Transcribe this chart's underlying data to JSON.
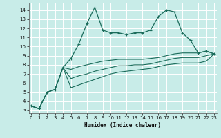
{
  "xlabel": "Humidex (Indice chaleur)",
  "bg_color": "#c8ece8",
  "grid_color": "#b8dbd6",
  "line_color": "#1a6b5a",
  "x_ticks": [
    0,
    1,
    2,
    3,
    4,
    5,
    6,
    7,
    8,
    9,
    10,
    11,
    12,
    13,
    14,
    15,
    16,
    17,
    18,
    19,
    20,
    21,
    22,
    23
  ],
  "y_ticks": [
    3,
    4,
    5,
    6,
    7,
    8,
    9,
    10,
    11,
    12,
    13,
    14
  ],
  "ylim": [
    2.7,
    14.8
  ],
  "xlim": [
    -0.3,
    23.3
  ],
  "main_line": [
    3.5,
    3.2,
    5.0,
    5.3,
    7.7,
    8.7,
    10.3,
    12.5,
    14.3,
    11.8,
    11.5,
    11.5,
    11.3,
    11.5,
    11.5,
    11.8,
    13.3,
    14.0,
    13.8,
    11.5,
    10.7,
    9.3,
    9.5,
    9.2
  ],
  "lower_line1": [
    3.5,
    3.2,
    5.0,
    5.3,
    7.7,
    7.5,
    7.8,
    8.0,
    8.2,
    8.4,
    8.5,
    8.6,
    8.6,
    8.6,
    8.6,
    8.7,
    8.8,
    9.0,
    9.2,
    9.3,
    9.3,
    9.3,
    9.5,
    9.2
  ],
  "lower_line2": [
    3.5,
    3.2,
    5.0,
    5.3,
    7.7,
    6.5,
    6.8,
    7.0,
    7.3,
    7.5,
    7.7,
    7.9,
    7.9,
    8.0,
    8.0,
    8.1,
    8.3,
    8.5,
    8.7,
    8.8,
    8.8,
    8.8,
    9.0,
    9.2
  ],
  "lower_line3": [
    3.5,
    3.2,
    5.0,
    5.3,
    7.7,
    5.5,
    5.8,
    6.1,
    6.4,
    6.7,
    7.0,
    7.2,
    7.3,
    7.4,
    7.5,
    7.6,
    7.8,
    8.0,
    8.1,
    8.2,
    8.2,
    8.2,
    8.4,
    9.2
  ]
}
